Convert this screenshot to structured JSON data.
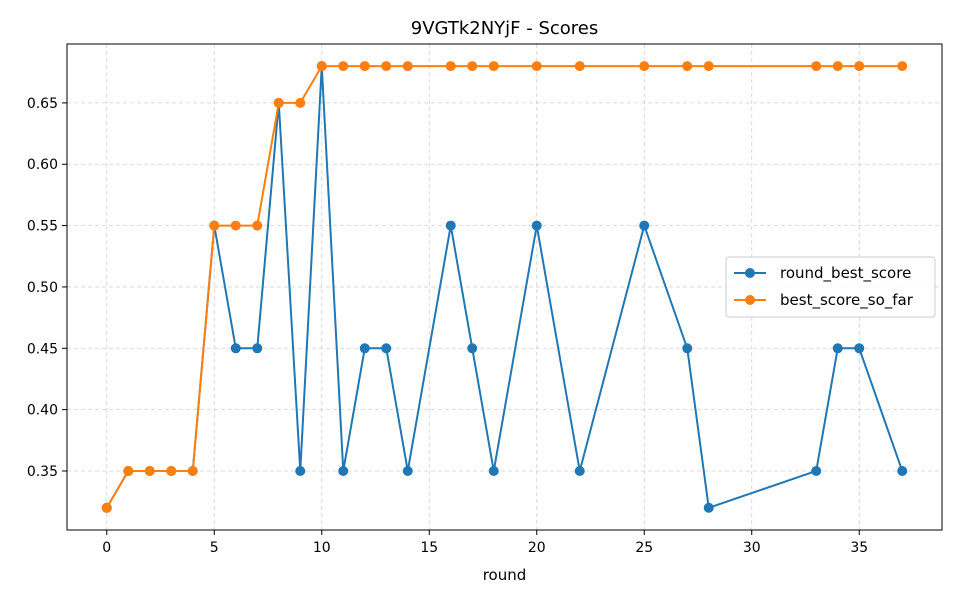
{
  "chart_data": {
    "type": "line",
    "title": "9VGTk2NYjF - Scores",
    "xlabel": "round",
    "ylabel": "",
    "xlim": [
      -1.85,
      38.85
    ],
    "ylim": [
      0.3019,
      0.698
    ],
    "x_ticks": [
      0,
      5,
      10,
      15,
      20,
      25,
      30,
      35
    ],
    "y_ticks": [
      0.35,
      0.4,
      0.45,
      0.5,
      0.55,
      0.6,
      0.65
    ],
    "grid": true,
    "legend_position": "center-right",
    "series": [
      {
        "name": "round_best_score",
        "color": "#1f77b4",
        "x": [
          0,
          1,
          2,
          3,
          4,
          5,
          6,
          7,
          8,
          9,
          10,
          11,
          12,
          13,
          14,
          16,
          17,
          18,
          20,
          22,
          25,
          27,
          28,
          33,
          34,
          35,
          37
        ],
        "y": [
          0.32,
          0.35,
          0.35,
          0.35,
          0.35,
          0.55,
          0.45,
          0.45,
          0.65,
          0.35,
          0.68,
          0.35,
          0.45,
          0.45,
          0.35,
          0.55,
          0.45,
          0.35,
          0.55,
          0.35,
          0.55,
          0.45,
          0.32,
          0.35,
          0.45,
          0.45,
          0.35
        ]
      },
      {
        "name": "best_score_so_far",
        "color": "#ff7f0e",
        "x": [
          0,
          1,
          2,
          3,
          4,
          5,
          6,
          7,
          8,
          9,
          10,
          11,
          12,
          13,
          14,
          16,
          17,
          18,
          20,
          22,
          25,
          27,
          28,
          33,
          34,
          35,
          37
        ],
        "y": [
          0.32,
          0.35,
          0.35,
          0.35,
          0.35,
          0.55,
          0.55,
          0.55,
          0.65,
          0.65,
          0.68,
          0.68,
          0.68,
          0.68,
          0.68,
          0.68,
          0.68,
          0.68,
          0.68,
          0.68,
          0.68,
          0.68,
          0.68,
          0.68,
          0.68,
          0.68,
          0.68
        ]
      }
    ]
  }
}
